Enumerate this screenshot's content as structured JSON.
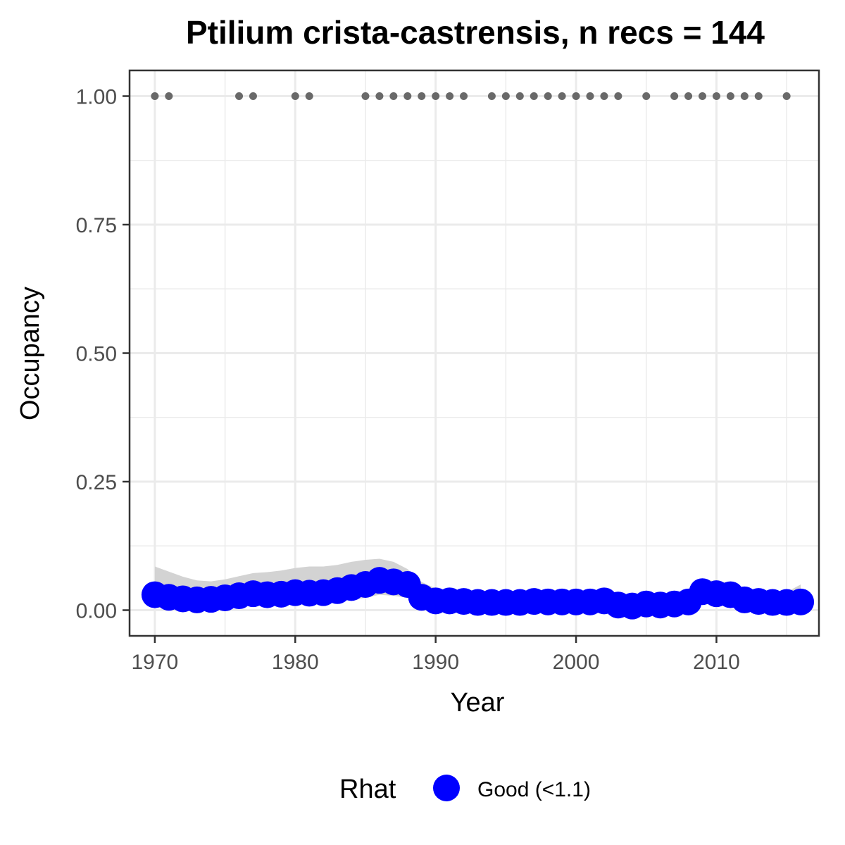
{
  "chart_data": {
    "type": "scatter",
    "title": "Ptilium crista-castrensis, n recs = 144",
    "xlabel": "Year",
    "ylabel": "Occupancy",
    "xlim": [
      1968.2,
      2017.3
    ],
    "ylim": [
      -0.05,
      1.05
    ],
    "x_ticks": [
      1970,
      1980,
      1990,
      2000,
      2010
    ],
    "x_tick_labels": [
      "1970",
      "1980",
      "1990",
      "2000",
      "2010"
    ],
    "y_ticks": [
      0,
      0.25,
      0.5,
      0.75,
      1.0
    ],
    "y_tick_labels": [
      "0.00",
      "0.25",
      "0.50",
      "0.75",
      "1.00"
    ],
    "grid": true,
    "legend": {
      "position": "bottom",
      "title": "Rhat",
      "entries": [
        {
          "label": "Good (<1.1)",
          "color": "#0000ff"
        }
      ]
    },
    "series": [
      {
        "name": "Good (<1.1)",
        "kind": "occupancy-estimate",
        "color": "#0000ff",
        "x": [
          1970,
          1971,
          1972,
          1973,
          1974,
          1975,
          1976,
          1977,
          1978,
          1979,
          1980,
          1981,
          1982,
          1983,
          1984,
          1985,
          1986,
          1987,
          1988,
          1989,
          1990,
          1991,
          1992,
          1993,
          1994,
          1995,
          1996,
          1997,
          1998,
          1999,
          2000,
          2001,
          2002,
          2003,
          2004,
          2005,
          2006,
          2007,
          2008,
          2009,
          2010,
          2011,
          2012,
          2013,
          2014,
          2015,
          2016
        ],
        "y": [
          0.03,
          0.025,
          0.022,
          0.02,
          0.021,
          0.024,
          0.028,
          0.032,
          0.03,
          0.031,
          0.034,
          0.033,
          0.034,
          0.038,
          0.044,
          0.05,
          0.058,
          0.055,
          0.05,
          0.025,
          0.018,
          0.018,
          0.017,
          0.015,
          0.015,
          0.015,
          0.015,
          0.017,
          0.016,
          0.016,
          0.016,
          0.016,
          0.018,
          0.01,
          0.008,
          0.012,
          0.01,
          0.012,
          0.016,
          0.036,
          0.032,
          0.03,
          0.02,
          0.017,
          0.015,
          0.015,
          0.016
        ],
        "lower": [
          0.005,
          0.003,
          0.002,
          0.002,
          0.003,
          0.005,
          0.008,
          0.01,
          0.01,
          0.011,
          0.013,
          0.013,
          0.014,
          0.016,
          0.02,
          0.024,
          0.03,
          0.028,
          0.024,
          0.008,
          0.004,
          0.004,
          0.004,
          0.003,
          0.003,
          0.003,
          0.003,
          0.004,
          0.004,
          0.004,
          0.004,
          0.004,
          0.005,
          0.002,
          0.001,
          0.003,
          0.002,
          0.003,
          0.004,
          0.012,
          0.011,
          0.01,
          0.006,
          0.004,
          0.003,
          0.003,
          0.004
        ],
        "upper": [
          0.085,
          0.075,
          0.065,
          0.058,
          0.056,
          0.06,
          0.066,
          0.072,
          0.074,
          0.077,
          0.082,
          0.085,
          0.085,
          0.088,
          0.094,
          0.098,
          0.1,
          0.094,
          0.08,
          0.055,
          0.042,
          0.04,
          0.038,
          0.034,
          0.034,
          0.034,
          0.034,
          0.036,
          0.035,
          0.035,
          0.035,
          0.035,
          0.038,
          0.028,
          0.024,
          0.028,
          0.026,
          0.028,
          0.034,
          0.06,
          0.056,
          0.054,
          0.042,
          0.036,
          0.034,
          0.035,
          0.05
        ]
      },
      {
        "name": "",
        "kind": "observed-records",
        "color": "#696969",
        "x": [
          1970,
          1971,
          1976,
          1977,
          1980,
          1981,
          1985,
          1986,
          1987,
          1988,
          1989,
          1990,
          1991,
          1992,
          1994,
          1995,
          1996,
          1997,
          1998,
          1999,
          2000,
          2001,
          2002,
          2003,
          2005,
          2007,
          2008,
          2009,
          2010,
          2011,
          2012,
          2013,
          2015
        ],
        "y": [
          1,
          1,
          1,
          1,
          1,
          1,
          1,
          1,
          1,
          1,
          1,
          1,
          1,
          1,
          1,
          1,
          1,
          1,
          1,
          1,
          1,
          1,
          1,
          1,
          1,
          1,
          1,
          1,
          1,
          1,
          1,
          1,
          1
        ]
      }
    ],
    "colors": {
      "estimate": "#0000ff",
      "ribbon": "#d3d3d3",
      "records": "#696969",
      "grid": "#ebebeb",
      "panel_border": "#333333"
    }
  }
}
